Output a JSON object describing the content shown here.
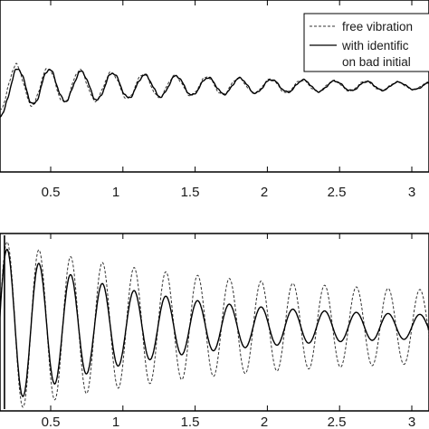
{
  "chart_data": [
    {
      "type": "line",
      "panel": "top",
      "xlim": [
        0,
        3.2
      ],
      "ylim": [
        -1.0,
        1.0
      ],
      "xticks": [
        "0.5",
        "1",
        "1.5",
        "2",
        "2.5",
        "3"
      ],
      "xtick_values": [
        0.5,
        1,
        1.5,
        2,
        2.5,
        3
      ],
      "grid": false,
      "legend_position": "top-right",
      "series": [
        {
          "name": "free vibration",
          "style": "dashed",
          "color": "#333333",
          "model": {
            "baseline": 0.0,
            "amplitude": 0.28,
            "decay": 0.62,
            "frequency_hz": 4.55,
            "phase": 0.35
          },
          "x_sample": [
            0.0,
            0.1,
            0.2,
            0.3,
            0.5,
            0.75,
            1.0,
            1.5,
            2.0,
            2.5,
            3.0,
            3.2
          ],
          "y_sample": [
            0.22,
            0.15,
            0.2,
            0.1,
            0.14,
            0.1,
            0.07,
            0.04,
            0.02,
            0.01,
            0.01,
            0.0
          ]
        },
        {
          "name": "with identification on bad initial",
          "style": "solid",
          "color": "#000000",
          "model": {
            "baseline": 0.0,
            "amplitude": 0.26,
            "decay": 0.6,
            "frequency_hz": 4.55,
            "phase": 0.1,
            "start_dip": -1.0
          },
          "x_sample": [
            0.0,
            0.05,
            0.1,
            0.2,
            0.3,
            0.5,
            0.75,
            1.0,
            1.5,
            2.0,
            2.5,
            3.0,
            3.2
          ],
          "y_sample": [
            -0.95,
            -0.55,
            -0.2,
            0.05,
            0.0,
            0.12,
            0.08,
            0.05,
            0.03,
            0.02,
            0.01,
            0.0,
            0.0
          ]
        }
      ]
    },
    {
      "type": "line",
      "panel": "bottom",
      "xlim": [
        0,
        3.2
      ],
      "ylim": [
        -1.0,
        1.0
      ],
      "xticks": [
        "0.5",
        "1",
        "1.5",
        "2",
        "2.5",
        "3"
      ],
      "xtick_values": [
        0.5,
        1,
        1.5,
        2,
        2.5,
        3
      ],
      "grid": false,
      "series": [
        {
          "name": "free vibration",
          "style": "dashed",
          "color": "#333333",
          "model": {
            "amplitude": 1.05,
            "decay": 0.72,
            "floor_amplitude": 0.34,
            "frequency_hz": 4.55,
            "phase": 0.6
          },
          "x_sample": [
            0.1,
            0.2,
            0.5,
            1.0,
            1.5,
            2.0,
            2.5,
            3.0,
            3.2
          ],
          "y_sample": [
            1.0,
            -0.9,
            0.75,
            0.55,
            0.45,
            0.38,
            0.35,
            0.34,
            0.34
          ]
        },
        {
          "name": "with identification on bad initial",
          "style": "solid",
          "color": "#000000",
          "model": {
            "amplitude": 1.05,
            "decay": 1.05,
            "floor_amplitude": 0.1,
            "frequency_hz": 4.55,
            "phase": 0.6
          },
          "x_sample": [
            0.1,
            0.2,
            0.5,
            1.0,
            1.5,
            2.0,
            2.5,
            3.0,
            3.2
          ],
          "y_sample": [
            1.0,
            -0.95,
            0.65,
            0.4,
            0.25,
            0.16,
            0.12,
            0.1,
            0.1
          ]
        }
      ]
    }
  ],
  "legend": {
    "entries": [
      {
        "text": "free vibration",
        "style": "dashed"
      },
      {
        "text": "with identific",
        "style": "solid"
      },
      {
        "text": "on bad initial",
        "style": "none"
      }
    ]
  }
}
